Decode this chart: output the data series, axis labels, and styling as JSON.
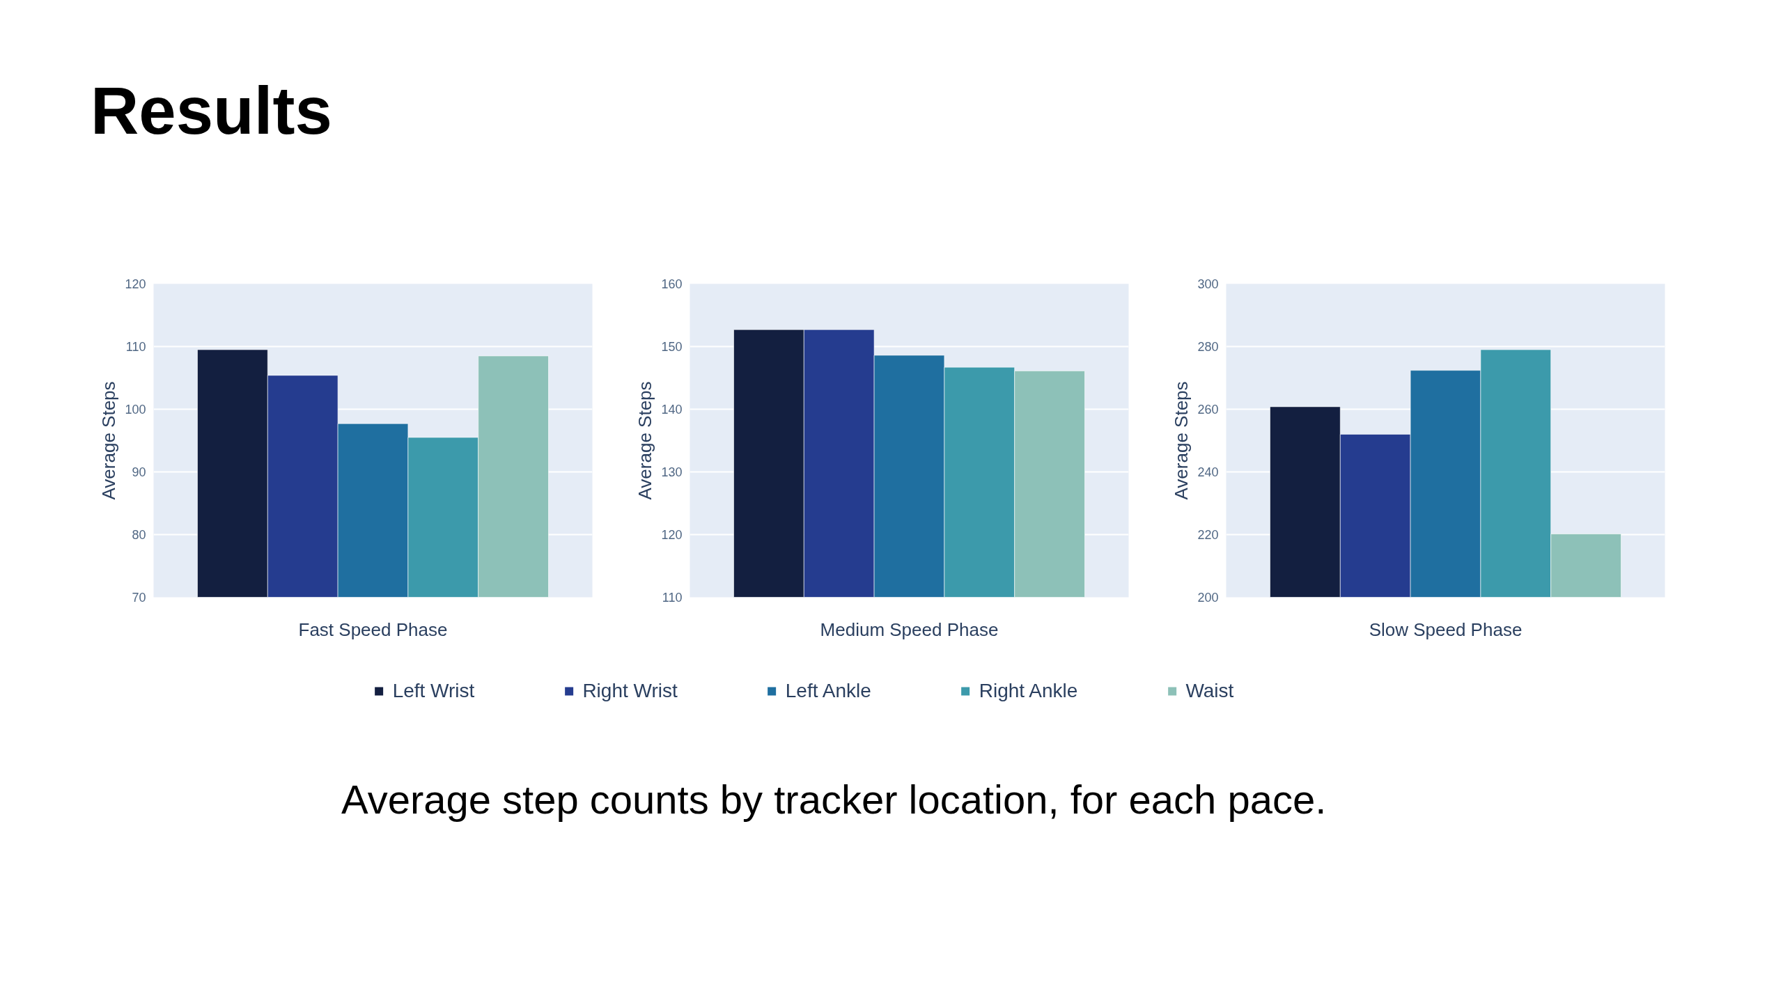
{
  "chart_data": [
    {
      "type": "bar",
      "title": "Results",
      "ylabel": "Average Steps",
      "categories": [
        "Fast Speed Phase"
      ],
      "ylim": [
        70,
        120
      ],
      "yticks": [
        70,
        80,
        90,
        100,
        110,
        120
      ],
      "grid": "y",
      "legend": "bottom",
      "annotations": [
        "Average step counts by tracker location, for each pace."
      ],
      "series": [
        {
          "name": "Left Wrist",
          "color": "#131f40",
          "values": [
            109.5
          ]
        },
        {
          "name": "Right Wrist",
          "color": "#253c8f",
          "values": [
            105.4
          ]
        },
        {
          "name": "Left Ankle",
          "color": "#1f6fa0",
          "values": [
            97.7
          ]
        },
        {
          "name": "Right Ankle",
          "color": "#3c9aab",
          "values": [
            95.5
          ]
        },
        {
          "name": "Waist",
          "color": "#8dc1b8",
          "values": [
            108.5
          ]
        }
      ]
    },
    {
      "type": "bar",
      "ylabel": "Average Steps",
      "categories": [
        "Medium Speed Phase"
      ],
      "ylim": [
        110,
        160
      ],
      "yticks": [
        110,
        120,
        130,
        140,
        150,
        160
      ],
      "grid": "y",
      "series": [
        {
          "color": "#131f40",
          "values": [
            152.7
          ]
        },
        {
          "color": "#253c8f",
          "values": [
            152.7
          ]
        },
        {
          "color": "#1f6fa0",
          "values": [
            148.6
          ]
        },
        {
          "color": "#3c9aab",
          "values": [
            146.7
          ]
        },
        {
          "color": "#8dc1b8",
          "values": [
            146.1
          ]
        }
      ]
    },
    {
      "type": "bar",
      "ylabel": "Average Steps",
      "categories": [
        "Slow Speed Phase"
      ],
      "ylim": [
        200,
        300
      ],
      "yticks": [
        200,
        220,
        240,
        260,
        280,
        300
      ],
      "grid": "y",
      "series": [
        {
          "color": "#131f40",
          "values": [
            260.8
          ]
        },
        {
          "color": "#253c8f",
          "values": [
            252
          ]
        },
        {
          "color": "#1f6fa0",
          "values": [
            272.4
          ]
        },
        {
          "color": "#3c9aab",
          "values": [
            279
          ]
        },
        {
          "color": "#8dc1b8",
          "values": [
            220.2
          ]
        }
      ]
    }
  ]
}
